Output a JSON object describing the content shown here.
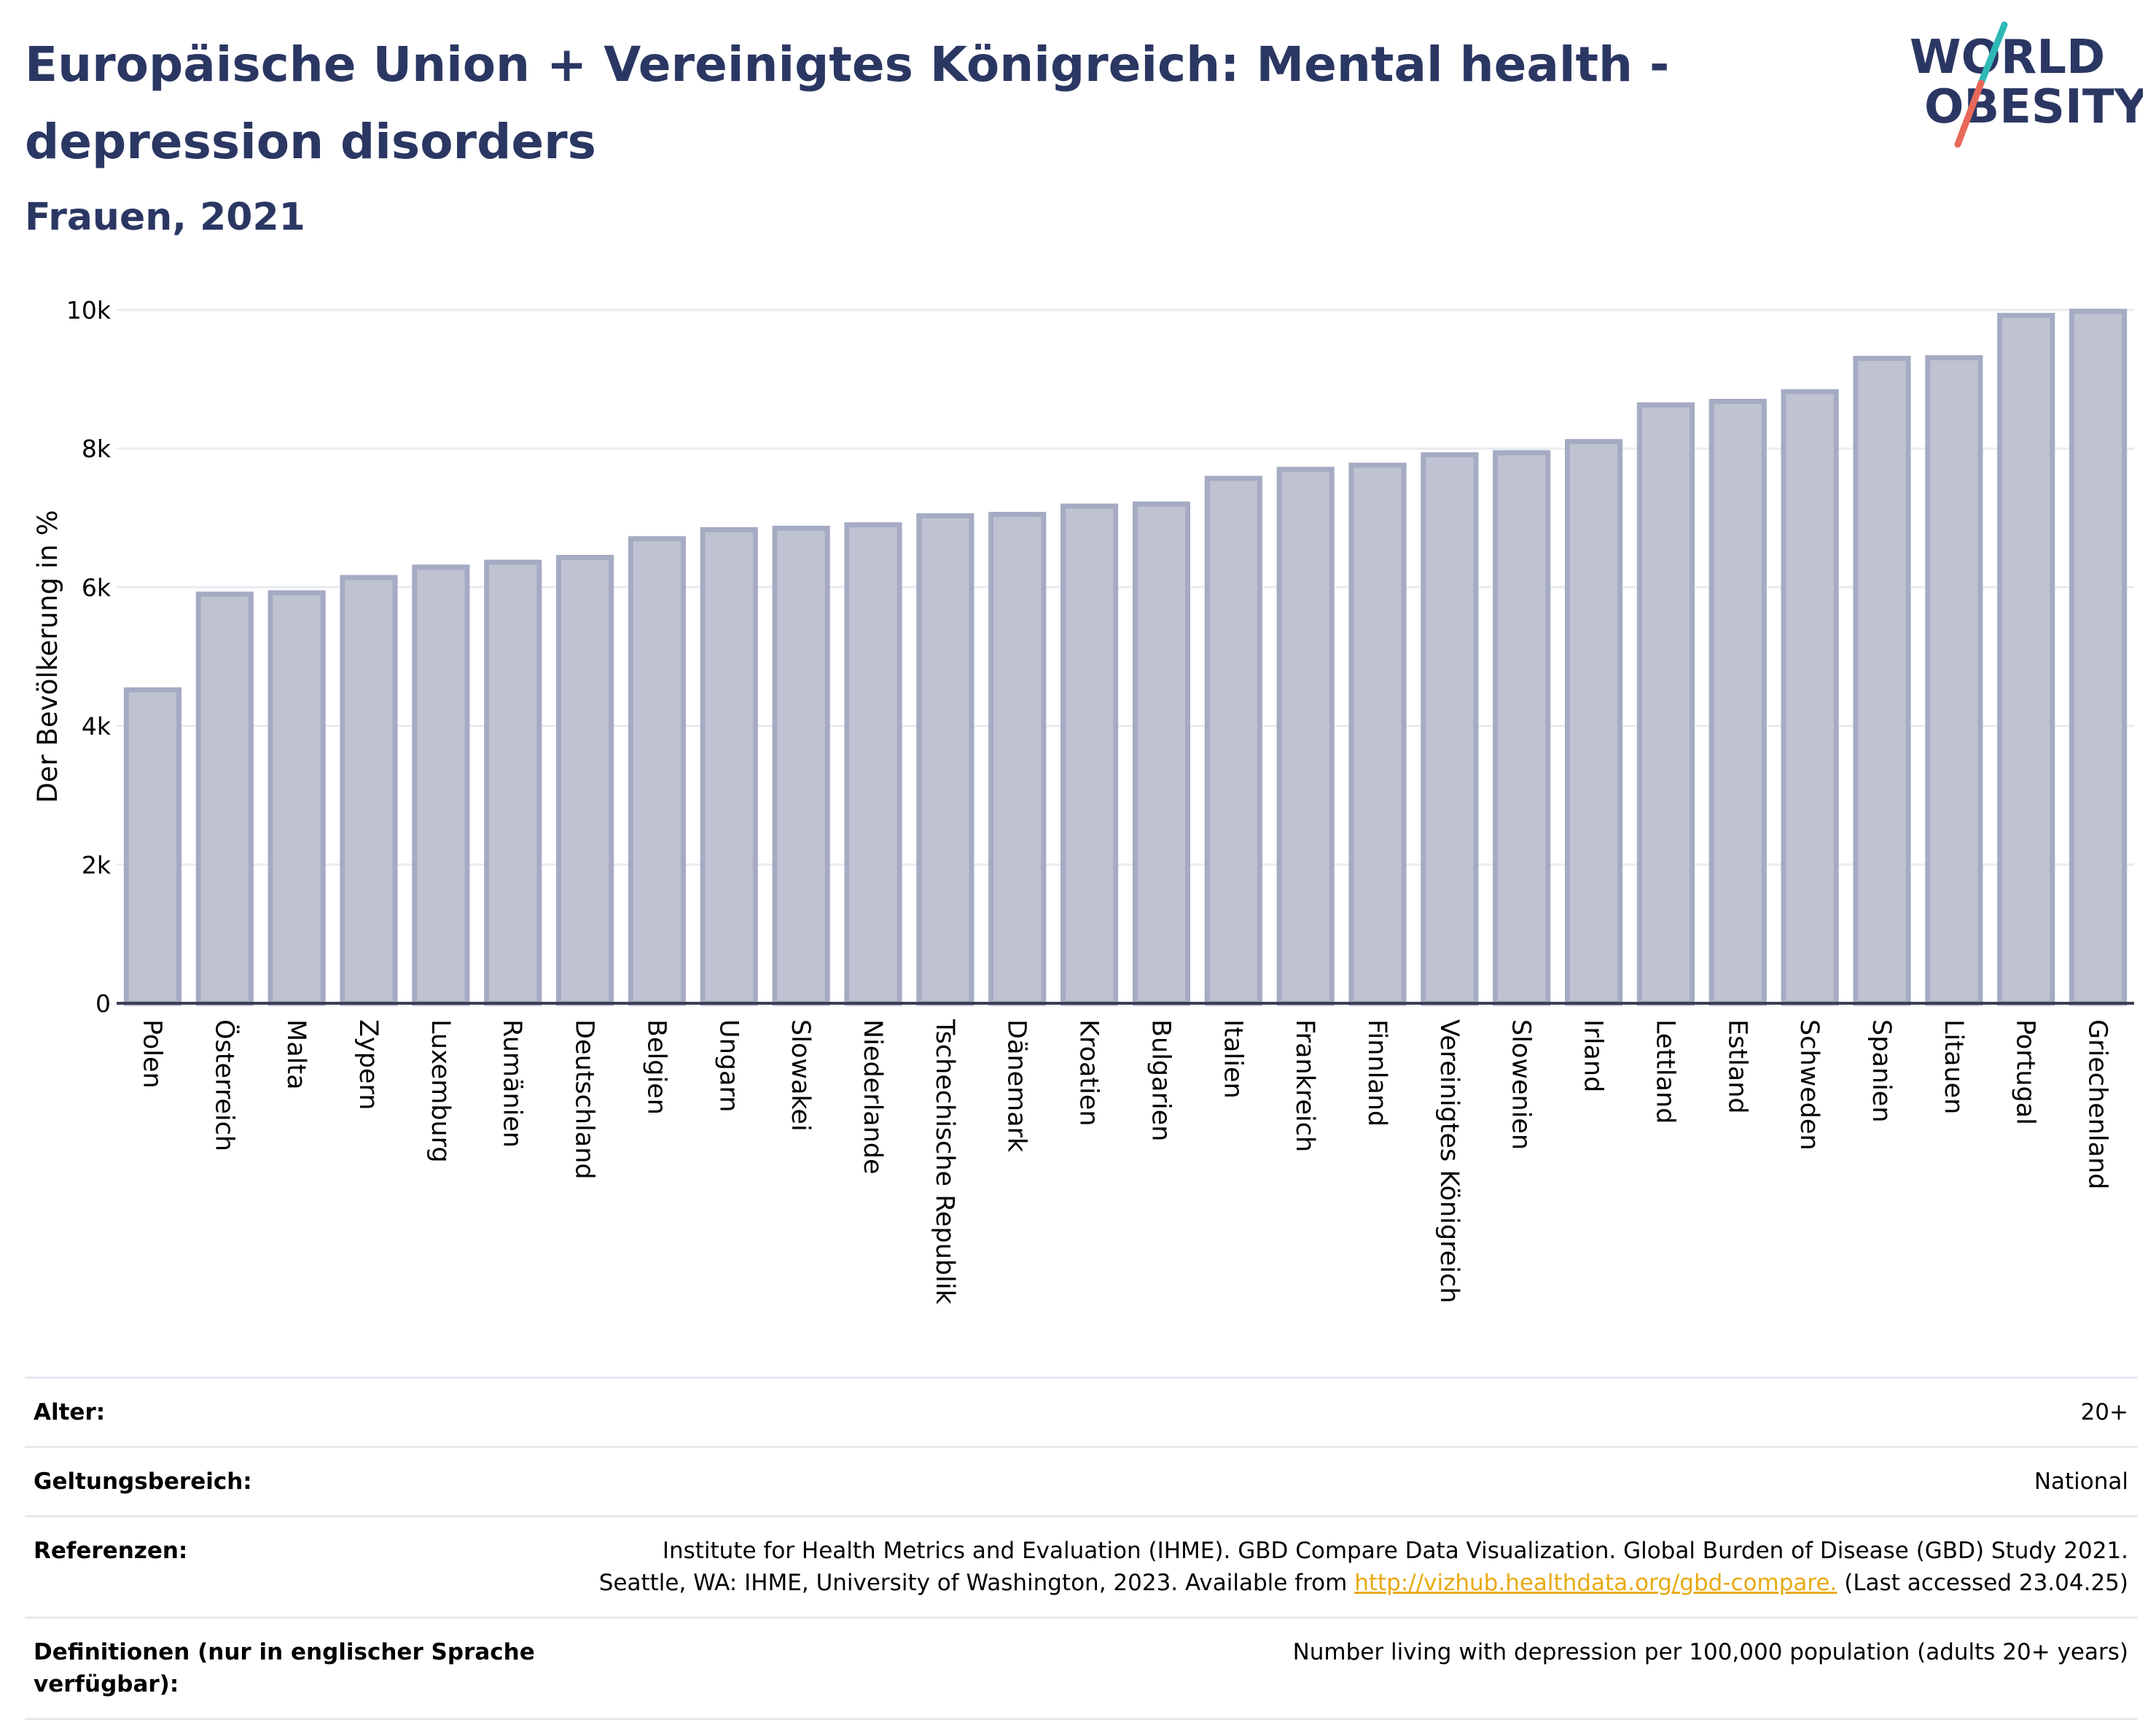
{
  "header": {
    "title": "Europäische Union + Vereinigtes Königreich: Mental health - depression disorders",
    "subtitle": "Frauen, 2021"
  },
  "logo": {
    "line1": "WORLD",
    "line2": "OBESITY",
    "text_color": "#2b3763",
    "accent_teal": "#2fb8b4",
    "accent_red": "#e8685a"
  },
  "chart_data": {
    "type": "bar",
    "title": "Europäische Union + Vereinigtes Königreich: Mental health - depression disorders",
    "subtitle": "Frauen, 2021",
    "xlabel": "",
    "ylabel": "Der Bevölkerung in %",
    "ylim": [
      0,
      10000
    ],
    "yticks": [
      {
        "value": 0,
        "label": "0"
      },
      {
        "value": 2000,
        "label": "2k"
      },
      {
        "value": 4000,
        "label": "4k"
      },
      {
        "value": 6000,
        "label": "6k"
      },
      {
        "value": 8000,
        "label": "8k"
      },
      {
        "value": 10000,
        "label": "10k"
      }
    ],
    "grid": true,
    "legend": "none",
    "bar_fill": "#bfc3d1",
    "bar_stroke": "#a5abc3",
    "categories": [
      "Polen",
      "Österreich",
      "Malta",
      "Zypern",
      "Luxemburg",
      "Rumänien",
      "Deutschland",
      "Belgien",
      "Ungarn",
      "Slowakei",
      "Niederlande",
      "Tschechische Republik",
      "Dänemark",
      "Kroatien",
      "Bulgarien",
      "Italien",
      "Frankreich",
      "Finnland",
      "Vereinigtes Königreich",
      "Slowenien",
      "Irland",
      "Lettland",
      "Estland",
      "Schweden",
      "Spanien",
      "Litauen",
      "Portugal",
      "Griechenland"
    ],
    "values": [
      4520,
      5900,
      5920,
      6140,
      6290,
      6360,
      6430,
      6700,
      6830,
      6850,
      6900,
      7030,
      7050,
      7170,
      7200,
      7570,
      7700,
      7760,
      7910,
      7940,
      8100,
      8630,
      8680,
      8820,
      9300,
      9310,
      9920,
      9980
    ]
  },
  "info": {
    "rows": [
      {
        "label": "Alter:",
        "value": "20+"
      },
      {
        "label": "Geltungsbereich:",
        "value": "National"
      },
      {
        "label": "Referenzen:",
        "value": "Institute for Health Metrics and Evaluation (IHME). GBD Compare Data Visualization. Global Burden of Disease (GBD) Study 2021.",
        "value2_prefix": "Seattle, WA: IHME, University of Washington, 2023. Available from ",
        "link": "http://vizhub.healthdata.org/gbd-compare.",
        "value2_suffix": " (Last accessed 23.04.25)"
      },
      {
        "label": "Definitionen (nur in englischer Sprache verfügbar):",
        "value": "Number living with depression per 100,000 population (adults 20+ years)"
      }
    ]
  }
}
